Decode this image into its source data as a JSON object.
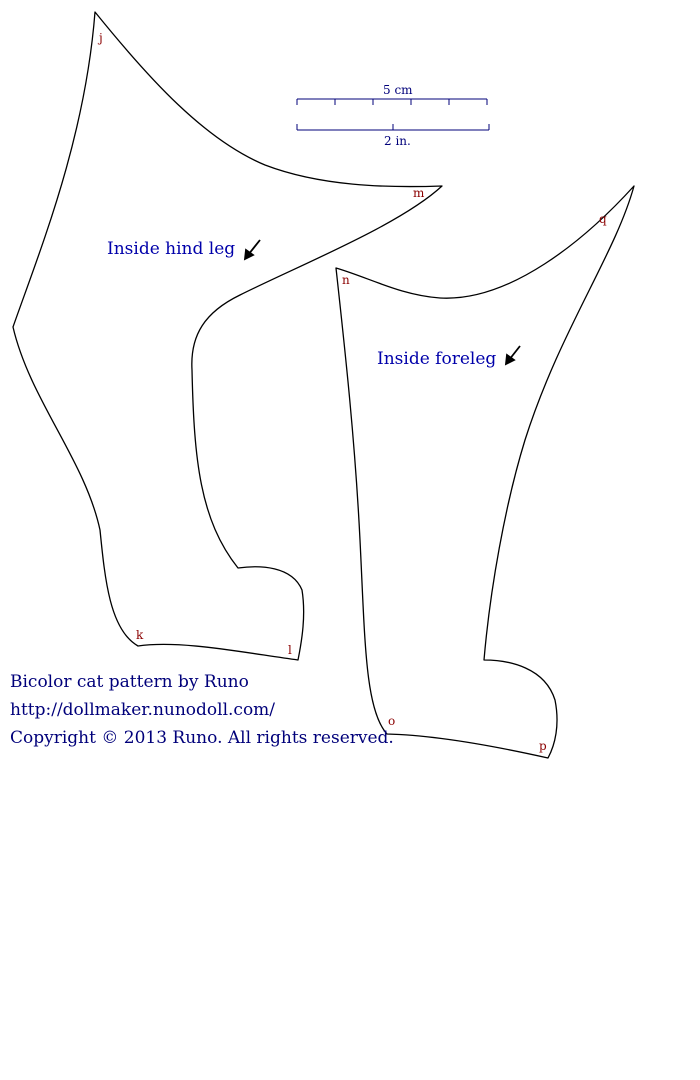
{
  "scale": {
    "metric_label": "5 cm",
    "imperial_label": "2 in."
  },
  "pieces": [
    {
      "name": "Inside hind leg",
      "points": [
        "j",
        "k",
        "l",
        "m"
      ]
    },
    {
      "name": "Inside foreleg",
      "points": [
        "n",
        "o",
        "p",
        "q"
      ]
    }
  ],
  "credits": {
    "line1": "Bicolor cat  pattern by Runo",
    "line2": "http://dollmaker.nunodoll.com/",
    "line3": "Copyright © 2013 Runo. All rights reserved."
  },
  "colors": {
    "label_blue": "#0000aa",
    "point_red": "#8b0000",
    "scale_navy": "#00007a"
  }
}
